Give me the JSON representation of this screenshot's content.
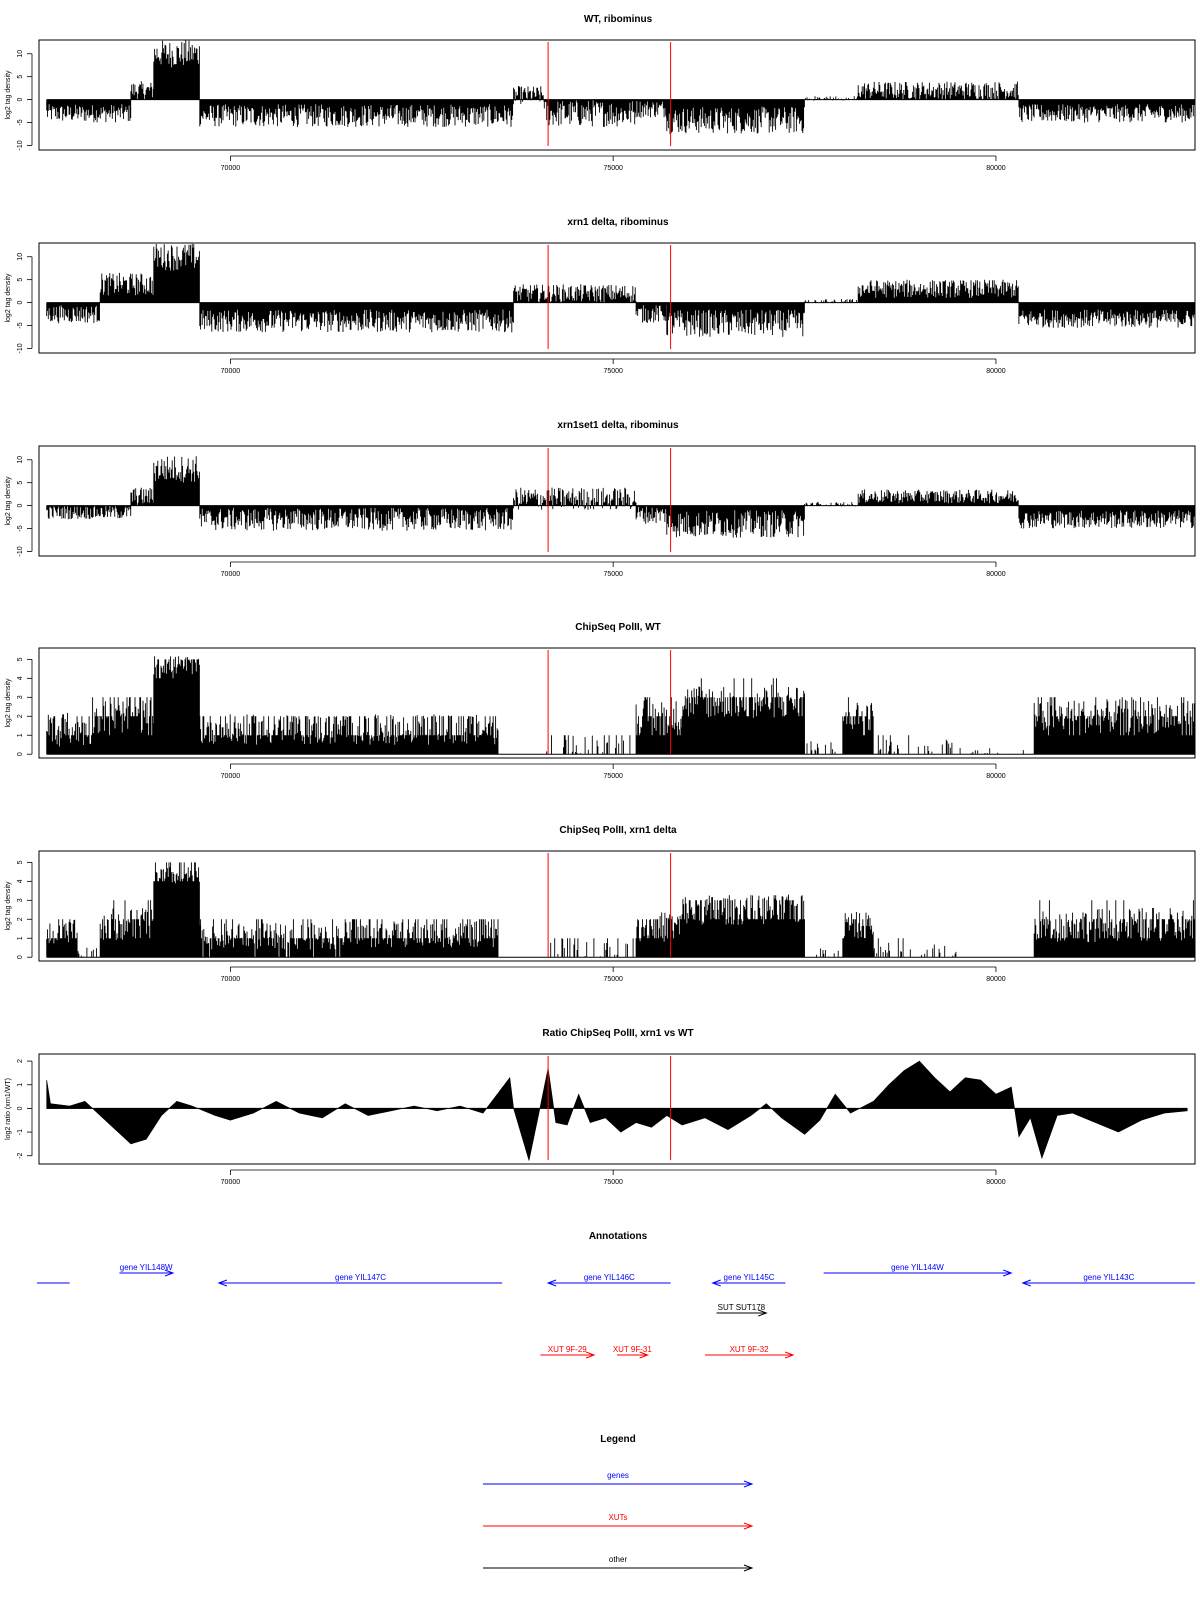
{
  "colors": {
    "genes": "#0000ff",
    "xuts": "#ff0000",
    "other": "#000000",
    "marker": "#ff0000",
    "bars": "#000000"
  },
  "chart_data": [
    {
      "id": "wt_ribominus",
      "type": "bar",
      "title": "WT, ribominus",
      "ylabel": "log2 tag density",
      "xlim": [
        67500,
        82600
      ],
      "ylim": [
        -11,
        13
      ],
      "yticks": [
        -10,
        -5,
        0,
        5,
        10
      ],
      "xticks": [
        70000,
        75000,
        80000
      ],
      "markers": [
        74150,
        75750
      ],
      "segments": [
        {
          "x": [
            67600,
            68700
          ],
          "level": -3,
          "jit": 2
        },
        {
          "x": [
            68700,
            69000
          ],
          "level": 2,
          "jit": 2
        },
        {
          "x": [
            69000,
            69600
          ],
          "level": 10,
          "jit": 3
        },
        {
          "x": [
            69600,
            73700
          ],
          "level": -3.5,
          "jit": 2.5
        },
        {
          "x": [
            73700,
            74100
          ],
          "level": 1,
          "jit": 2
        },
        {
          "x": [
            74100,
            75300
          ],
          "level": -3,
          "jit": 3
        },
        {
          "x": [
            75300,
            75700
          ],
          "level": -2,
          "jit": 2
        },
        {
          "x": [
            75700,
            77500
          ],
          "level": -4.5,
          "jit": 3
        },
        {
          "x": [
            77500,
            78200
          ],
          "level": 0.3,
          "jit": 0.5
        },
        {
          "x": [
            78200,
            80300
          ],
          "level": 2,
          "jit": 2
        },
        {
          "x": [
            80300,
            82600
          ],
          "level": -3,
          "jit": 2
        }
      ]
    },
    {
      "id": "xrn1_ribominus",
      "type": "bar",
      "title": "xrn1 delta, ribominus",
      "ylabel": "log2 tag density",
      "xlim": [
        67500,
        82600
      ],
      "ylim": [
        -11,
        13
      ],
      "yticks": [
        -10,
        -5,
        0,
        5,
        10
      ],
      "xticks": [
        70000,
        75000,
        80000
      ],
      "markers": [
        74150,
        75750
      ],
      "segments": [
        {
          "x": [
            67600,
            68300
          ],
          "level": -2.5,
          "jit": 2
        },
        {
          "x": [
            68300,
            69000
          ],
          "level": 4,
          "jit": 2.5
        },
        {
          "x": [
            69000,
            69600
          ],
          "level": 10,
          "jit": 3
        },
        {
          "x": [
            69600,
            73700
          ],
          "level": -4,
          "jit": 2.5
        },
        {
          "x": [
            73700,
            75300
          ],
          "level": 2,
          "jit": 2
        },
        {
          "x": [
            75300,
            75700
          ],
          "level": -2.5,
          "jit": 2
        },
        {
          "x": [
            75700,
            77500
          ],
          "level": -4.5,
          "jit": 3
        },
        {
          "x": [
            77500,
            78200
          ],
          "level": 0.3,
          "jit": 0.5
        },
        {
          "x": [
            78200,
            80300
          ],
          "level": 3,
          "jit": 2
        },
        {
          "x": [
            80300,
            82600
          ],
          "level": -3.5,
          "jit": 2
        }
      ]
    },
    {
      "id": "xrn1set1_ribominus",
      "type": "bar",
      "title": "xrn1set1 delta, ribominus",
      "ylabel": "log2 tag density",
      "xlim": [
        67500,
        82600
      ],
      "ylim": [
        -11,
        13
      ],
      "yticks": [
        -10,
        -5,
        0,
        5,
        10
      ],
      "xticks": [
        70000,
        75000,
        80000
      ],
      "markers": [
        74150,
        75750
      ],
      "segments": [
        {
          "x": [
            67600,
            68700
          ],
          "level": -1.5,
          "jit": 1.5
        },
        {
          "x": [
            68700,
            69000
          ],
          "level": 2,
          "jit": 2
        },
        {
          "x": [
            69000,
            69600
          ],
          "level": 8,
          "jit": 3
        },
        {
          "x": [
            69600,
            73700
          ],
          "level": -3,
          "jit": 2.5
        },
        {
          "x": [
            73700,
            75300
          ],
          "level": 1.5,
          "jit": 2.5
        },
        {
          "x": [
            75300,
            75700
          ],
          "level": -2,
          "jit": 2
        },
        {
          "x": [
            75700,
            77500
          ],
          "level": -4,
          "jit": 3
        },
        {
          "x": [
            77500,
            78200
          ],
          "level": 0.3,
          "jit": 0.5
        },
        {
          "x": [
            78200,
            80300
          ],
          "level": 2,
          "jit": 1.5
        },
        {
          "x": [
            80300,
            82600
          ],
          "level": -3,
          "jit": 2
        }
      ]
    },
    {
      "id": "chipseq_wt",
      "type": "bar",
      "title": "ChipSeq PolII, WT",
      "ylabel": "log2 tag density",
      "xlim": [
        67500,
        82600
      ],
      "ylim": [
        -0.2,
        5.6
      ],
      "yticks": [
        0,
        1,
        2,
        3,
        4,
        5
      ],
      "xticks": [
        70000,
        75000,
        80000
      ],
      "markers": [
        74150,
        75750
      ],
      "segments": [
        {
          "x": [
            67600,
            68200
          ],
          "level": 1.3,
          "jit": 0.9
        },
        {
          "x": [
            68200,
            69000
          ],
          "level": 2.0,
          "jit": 0.9
        },
        {
          "x": [
            69000,
            69600
          ],
          "level": 4.7,
          "jit": 0.5
        },
        {
          "x": [
            69600,
            71500
          ],
          "level": 1.3,
          "jit": 0.8
        },
        {
          "x": [
            71500,
            73500
          ],
          "level": 1.3,
          "jit": 0.8
        },
        {
          "x": [
            73500,
            74100
          ],
          "level": 0,
          "jit": 0
        },
        {
          "x": [
            74100,
            75300
          ],
          "level": 0.4,
          "jit": 0.6
        },
        {
          "x": [
            75300,
            75900
          ],
          "level": 2.0,
          "jit": 0.9
        },
        {
          "x": [
            75900,
            77500
          ],
          "level": 2.8,
          "jit": 0.9
        },
        {
          "x": [
            77500,
            78000
          ],
          "level": 0.3,
          "jit": 0.4
        },
        {
          "x": [
            78000,
            78400
          ],
          "level": 2.0,
          "jit": 0.8
        },
        {
          "x": [
            78400,
            79500
          ],
          "level": 0.3,
          "jit": 0.5
        },
        {
          "x": [
            79500,
            80500
          ],
          "level": 0.1,
          "jit": 0.3
        },
        {
          "x": [
            80500,
            82600
          ],
          "level": 2.0,
          "jit": 0.9
        }
      ]
    },
    {
      "id": "chipseq_xrn1",
      "type": "bar",
      "title": "ChipSeq PolII, xrn1 delta",
      "ylabel": "log2 tag density",
      "xlim": [
        67500,
        82600
      ],
      "ylim": [
        -0.2,
        5.6
      ],
      "yticks": [
        0,
        1,
        2,
        3,
        4,
        5
      ],
      "xticks": [
        70000,
        75000,
        80000
      ],
      "markers": [
        74150,
        75750
      ],
      "segments": [
        {
          "x": [
            67600,
            68000
          ],
          "level": 1.2,
          "jit": 0.8
        },
        {
          "x": [
            68000,
            68300
          ],
          "level": 0.2,
          "jit": 0.3
        },
        {
          "x": [
            68300,
            69000
          ],
          "level": 1.8,
          "jit": 0.9
        },
        {
          "x": [
            69000,
            69600
          ],
          "level": 4.3,
          "jit": 0.5
        },
        {
          "x": [
            69600,
            71500
          ],
          "level": 1.1,
          "jit": 0.7
        },
        {
          "x": [
            71500,
            73500
          ],
          "level": 1.2,
          "jit": 0.7
        },
        {
          "x": [
            73500,
            74100
          ],
          "level": 0,
          "jit": 0
        },
        {
          "x": [
            74100,
            75300
          ],
          "level": 0.4,
          "jit": 0.6
        },
        {
          "x": [
            75300,
            75900
          ],
          "level": 1.6,
          "jit": 0.8
        },
        {
          "x": [
            75900,
            77500
          ],
          "level": 2.5,
          "jit": 0.8
        },
        {
          "x": [
            77500,
            78000
          ],
          "level": 0.2,
          "jit": 0.3
        },
        {
          "x": [
            78000,
            78400
          ],
          "level": 1.7,
          "jit": 0.7
        },
        {
          "x": [
            78400,
            79500
          ],
          "level": 0.4,
          "jit": 0.4
        },
        {
          "x": [
            79500,
            80500
          ],
          "level": 0,
          "jit": 0
        },
        {
          "x": [
            80500,
            82600
          ],
          "level": 1.7,
          "jit": 0.9
        }
      ]
    },
    {
      "id": "ratio_xrn1_wt",
      "type": "area",
      "title": "Ratio ChipSeq PolII, xrn1 vs WT",
      "ylabel": "log2 ratio (xrn1/WT)",
      "xlim": [
        67500,
        82600
      ],
      "ylim": [
        -2.35,
        2.3
      ],
      "yticks": [
        -2,
        -1,
        0,
        1,
        2
      ],
      "xticks": [
        70000,
        75000,
        80000
      ],
      "markers": [
        74150,
        75750
      ],
      "profile": [
        [
          67600,
          1.2
        ],
        [
          67650,
          0.2
        ],
        [
          67900,
          0.1
        ],
        [
          68100,
          0.3
        ],
        [
          68400,
          -0.6
        ],
        [
          68700,
          -1.5
        ],
        [
          68900,
          -1.3
        ],
        [
          69100,
          -0.3
        ],
        [
          69300,
          0.3
        ],
        [
          69500,
          0.1
        ],
        [
          69800,
          -0.3
        ],
        [
          70000,
          -0.5
        ],
        [
          70300,
          -0.2
        ],
        [
          70600,
          0.3
        ],
        [
          70900,
          -0.2
        ],
        [
          71200,
          -0.4
        ],
        [
          71500,
          0.2
        ],
        [
          71800,
          -0.3
        ],
        [
          72100,
          -0.1
        ],
        [
          72400,
          0.1
        ],
        [
          72700,
          -0.1
        ],
        [
          73000,
          0.1
        ],
        [
          73300,
          -0.2
        ],
        [
          73650,
          1.3
        ],
        [
          73700,
          0
        ],
        [
          73900,
          -2.2
        ],
        [
          74050,
          0.1
        ],
        [
          74150,
          1.7
        ],
        [
          74250,
          -0.6
        ],
        [
          74400,
          -0.7
        ],
        [
          74550,
          0.6
        ],
        [
          74700,
          -0.6
        ],
        [
          74900,
          -0.4
        ],
        [
          75100,
          -1.0
        ],
        [
          75300,
          -0.6
        ],
        [
          75500,
          -0.8
        ],
        [
          75700,
          -0.3
        ],
        [
          75900,
          -0.7
        ],
        [
          76200,
          -0.4
        ],
        [
          76500,
          -0.9
        ],
        [
          76800,
          -0.3
        ],
        [
          77000,
          0.2
        ],
        [
          77200,
          -0.4
        ],
        [
          77500,
          -1.1
        ],
        [
          77700,
          -0.5
        ],
        [
          77900,
          0.6
        ],
        [
          78100,
          -0.2
        ],
        [
          78400,
          0.3
        ],
        [
          78600,
          1.0
        ],
        [
          78800,
          1.6
        ],
        [
          79000,
          2.0
        ],
        [
          79200,
          1.3
        ],
        [
          79400,
          0.7
        ],
        [
          79600,
          1.3
        ],
        [
          79800,
          1.2
        ],
        [
          80000,
          0.6
        ],
        [
          80200,
          0.9
        ],
        [
          80300,
          -1.2
        ],
        [
          80450,
          -0.4
        ],
        [
          80600,
          -2.1
        ],
        [
          80800,
          -0.3
        ],
        [
          81000,
          -0.2
        ],
        [
          81300,
          -0.6
        ],
        [
          81600,
          -1.0
        ],
        [
          81900,
          -0.5
        ],
        [
          82200,
          -0.2
        ],
        [
          82500,
          -0.1
        ]
      ]
    },
    {
      "id": "annotations",
      "type": "annotation",
      "title": "Annotations",
      "xlim": [
        67500,
        82600
      ],
      "features": [
        {
          "label": "",
          "kind": "genes",
          "x0": 66700,
          "x1": 67900,
          "row": 1,
          "dir": "none"
        },
        {
          "label": "gene YIL148W",
          "kind": "genes",
          "x0": 69250,
          "x1": 68550,
          "row": 0,
          "dir": "right"
        },
        {
          "label": "gene YIL147C",
          "kind": "genes",
          "x0": 73550,
          "x1": 69850,
          "row": 1,
          "dir": "left"
        },
        {
          "label": "gene YIL146C",
          "kind": "genes",
          "x0": 75750,
          "x1": 74150,
          "row": 1,
          "dir": "left"
        },
        {
          "label": "gene YIL145C",
          "kind": "genes",
          "x0": 77250,
          "x1": 76300,
          "row": 1,
          "dir": "left"
        },
        {
          "label": "gene YIL144W",
          "kind": "genes",
          "x0": 77750,
          "x1": 80200,
          "row": 0,
          "dir": "right"
        },
        {
          "label": "gene YIL143C",
          "kind": "genes",
          "x0": 82800,
          "x1": 80350,
          "row": 1,
          "dir": "left"
        },
        {
          "label": "SUT SUT178",
          "kind": "other",
          "x0": 76350,
          "x1": 77000,
          "row": 2,
          "dir": "right"
        },
        {
          "label": "XUT 9F-29",
          "kind": "xuts",
          "x0": 74050,
          "x1": 74750,
          "row": 3,
          "dir": "right"
        },
        {
          "label": "XUT 9F-31",
          "kind": "xuts",
          "x0": 75050,
          "x1": 75450,
          "row": 3,
          "dir": "right"
        },
        {
          "label": "XUT 9F-32",
          "kind": "xuts",
          "x0": 76200,
          "x1": 77350,
          "row": 3,
          "dir": "right"
        }
      ]
    }
  ],
  "legend": {
    "title": "Legend",
    "entries": [
      {
        "label": "genes",
        "kind": "genes"
      },
      {
        "label": "XUTs",
        "kind": "xuts"
      },
      {
        "label": "other",
        "kind": "other"
      }
    ]
  }
}
